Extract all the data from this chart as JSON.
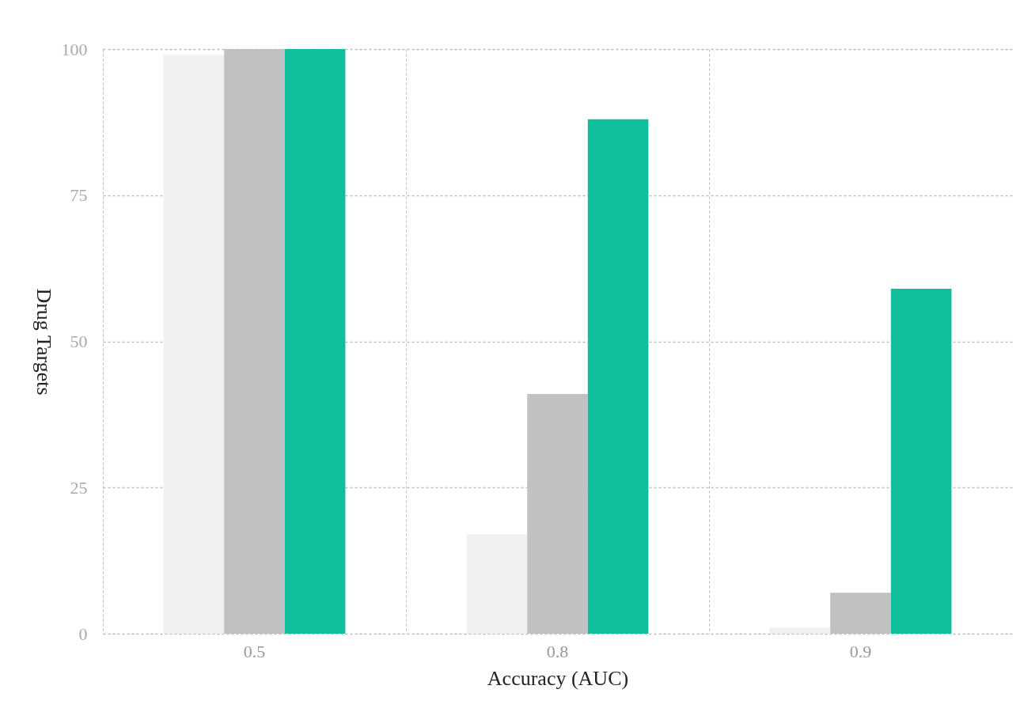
{
  "chart_data": {
    "type": "bar",
    "xlabel": "Accuracy (AUC)",
    "ylabel": "Drug Targets",
    "categories": [
      "0.5",
      "0.8",
      "0.9"
    ],
    "series": [
      {
        "color": "#f0f0f0",
        "values": [
          99,
          17,
          1
        ]
      },
      {
        "color": "#c0c1c3",
        "values": [
          100,
          41,
          7
        ]
      },
      {
        "color": "#0fbf9b",
        "values": [
          100,
          88,
          59
        ]
      }
    ],
    "ylim": [
      0,
      100
    ],
    "yticks": [
      0,
      25,
      50,
      75,
      100
    ],
    "grid": true,
    "legend": false
  }
}
